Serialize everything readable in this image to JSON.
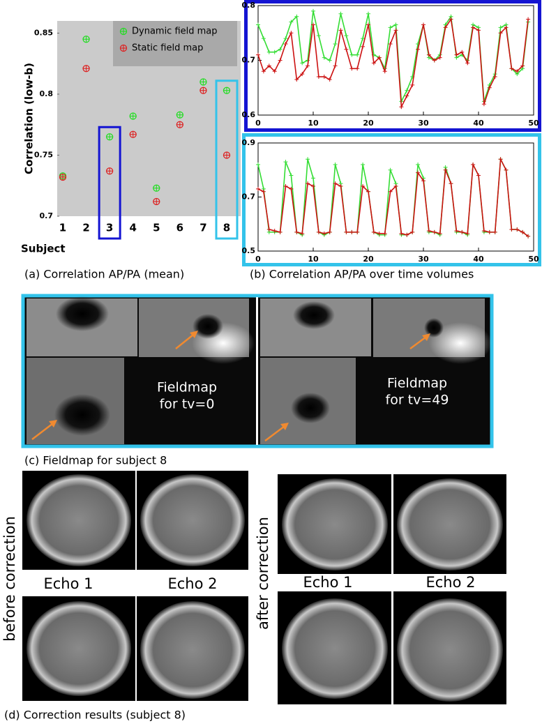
{
  "chart_data": [
    {
      "type": "scatter",
      "xlabel": "Subject",
      "ylabel": "Correlation (low-b)",
      "categories": [
        "1",
        "2",
        "3",
        "4",
        "5",
        "6",
        "7",
        "8"
      ],
      "ylim": [
        0.7,
        0.86
      ],
      "yticks": [
        0.7,
        0.75,
        0.8,
        0.85
      ],
      "legend": "upper right",
      "series": [
        {
          "name": "Dynamic field map",
          "color": "#22dd22",
          "values": [
            0.733,
            0.845,
            0.765,
            0.782,
            0.723,
            0.783,
            0.81,
            0.803
          ]
        },
        {
          "name": "Static field map",
          "color": "#dd2222",
          "values": [
            0.732,
            0.821,
            0.737,
            0.767,
            0.712,
            0.775,
            0.803,
            0.75
          ]
        }
      ]
    },
    {
      "type": "line",
      "x": [
        0,
        1,
        2,
        3,
        4,
        5,
        6,
        7,
        8,
        9,
        10,
        11,
        12,
        13,
        14,
        15,
        16,
        17,
        18,
        19,
        20,
        21,
        22,
        23,
        24,
        25,
        26,
        27,
        28,
        29,
        30,
        31,
        32,
        33,
        34,
        35,
        36,
        37,
        38,
        39,
        40,
        41,
        42,
        43,
        44,
        45,
        46,
        47,
        48,
        49
      ],
      "xlim": [
        0,
        50
      ],
      "xticks": [
        0,
        10,
        20,
        30,
        40,
        50
      ],
      "ylim": [
        0.6,
        0.8
      ],
      "yticks": [
        0.6,
        0.7,
        0.8
      ],
      "series": [
        {
          "color": "#33dd33",
          "values": [
            0.765,
            0.74,
            0.715,
            0.715,
            0.72,
            0.74,
            0.77,
            0.78,
            0.695,
            0.7,
            0.79,
            0.745,
            0.705,
            0.7,
            0.73,
            0.785,
            0.745,
            0.71,
            0.71,
            0.74,
            0.785,
            0.71,
            0.705,
            0.685,
            0.76,
            0.765,
            0.625,
            0.645,
            0.67,
            0.73,
            0.765,
            0.705,
            0.7,
            0.71,
            0.765,
            0.78,
            0.705,
            0.71,
            0.7,
            0.765,
            0.76,
            0.625,
            0.655,
            0.675,
            0.76,
            0.765,
            0.685,
            0.675,
            0.685,
            0.77
          ]
        },
        {
          "color": "#cc1111",
          "values": [
            0.71,
            0.68,
            0.69,
            0.68,
            0.7,
            0.73,
            0.75,
            0.665,
            0.675,
            0.69,
            0.765,
            0.67,
            0.67,
            0.665,
            0.69,
            0.755,
            0.72,
            0.685,
            0.685,
            0.725,
            0.765,
            0.695,
            0.705,
            0.68,
            0.73,
            0.755,
            0.615,
            0.635,
            0.655,
            0.72,
            0.765,
            0.71,
            0.7,
            0.705,
            0.76,
            0.775,
            0.71,
            0.715,
            0.695,
            0.76,
            0.755,
            0.62,
            0.65,
            0.67,
            0.75,
            0.76,
            0.685,
            0.68,
            0.69,
            0.775
          ]
        }
      ]
    },
    {
      "type": "line",
      "x": [
        0,
        1,
        2,
        3,
        4,
        5,
        6,
        7,
        8,
        9,
        10,
        11,
        12,
        13,
        14,
        15,
        16,
        17,
        18,
        19,
        20,
        21,
        22,
        23,
        24,
        25,
        26,
        27,
        28,
        29,
        30,
        31,
        32,
        33,
        34,
        35,
        36,
        37,
        38,
        39,
        40,
        41,
        42,
        43,
        44,
        45,
        46,
        47,
        48,
        49
      ],
      "xlim": [
        0,
        50
      ],
      "xticks": [
        0,
        10,
        20,
        30,
        40,
        50
      ],
      "ylim": [
        0.5,
        0.9
      ],
      "yticks": [
        0.5,
        0.7,
        0.9
      ],
      "series": [
        {
          "color": "#33dd33",
          "values": [
            0.82,
            0.73,
            0.57,
            0.57,
            0.57,
            0.83,
            0.78,
            0.57,
            0.56,
            0.84,
            0.77,
            0.57,
            0.56,
            0.57,
            0.82,
            0.75,
            0.57,
            0.57,
            0.57,
            0.82,
            0.72,
            0.57,
            0.56,
            0.56,
            0.8,
            0.75,
            0.56,
            0.56,
            0.57,
            0.82,
            0.77,
            0.57,
            0.57,
            0.56,
            0.81,
            0.75,
            0.57,
            0.57,
            0.56,
            0.82,
            0.78,
            0.57,
            0.57,
            0.57,
            0.84,
            0.8,
            0.58,
            0.58,
            0.57,
            0.555
          ]
        },
        {
          "color": "#cc1111",
          "values": [
            0.73,
            0.72,
            0.58,
            0.575,
            0.57,
            0.74,
            0.73,
            0.57,
            0.565,
            0.75,
            0.74,
            0.57,
            0.565,
            0.57,
            0.75,
            0.74,
            0.57,
            0.57,
            0.57,
            0.74,
            0.72,
            0.57,
            0.565,
            0.565,
            0.72,
            0.74,
            0.565,
            0.56,
            0.57,
            0.79,
            0.76,
            0.575,
            0.57,
            0.565,
            0.8,
            0.75,
            0.575,
            0.57,
            0.565,
            0.82,
            0.78,
            0.575,
            0.57,
            0.57,
            0.84,
            0.8,
            0.58,
            0.58,
            0.57,
            0.555
          ]
        }
      ]
    }
  ],
  "captions": [
    "(a) Correlation AP/PA (mean)",
    "(b) Correlation AP/PA over time volumes",
    "(c) Fieldmap for subject 8",
    "(d) Correction results (subject 8)"
  ],
  "fieldmaps": [
    {
      "line1": "Fieldmap",
      "line2": "for tv=0"
    },
    {
      "line1": "Fieldmap",
      "line2": "for tv=49"
    }
  ],
  "corrections": [
    {
      "label": "before correction",
      "echoes": [
        "Echo 1",
        "Echo 2"
      ]
    },
    {
      "label": "after correction",
      "echoes": [
        "Echo 1",
        "Echo 2"
      ]
    }
  ]
}
